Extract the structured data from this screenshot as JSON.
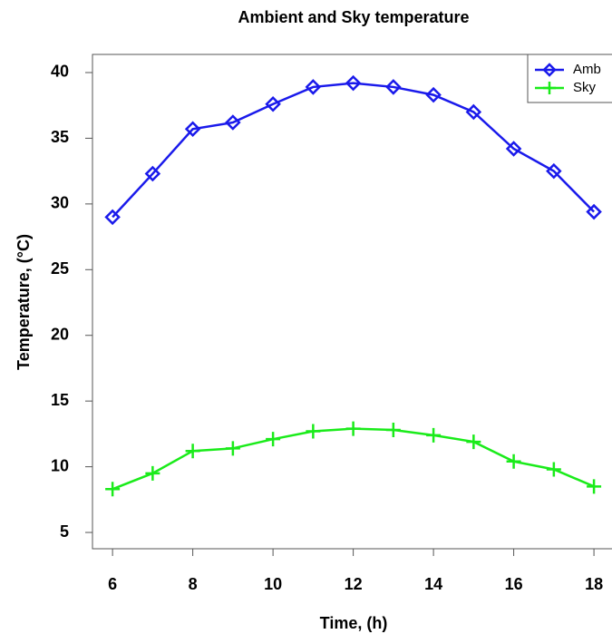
{
  "chart_data": {
    "type": "line",
    "title": "Ambient and Sky temperature",
    "x_label": "Time, (h)",
    "y_label": "Temperature, (°C)",
    "x": [
      6,
      7,
      8,
      9,
      10,
      11,
      12,
      13,
      14,
      15,
      16,
      17,
      18
    ],
    "series": [
      {
        "name": "Amb",
        "color": "#1a1aeb",
        "marker": "diamond",
        "values": [
          29.0,
          32.3,
          35.7,
          36.2,
          37.6,
          38.9,
          39.2,
          38.9,
          38.3,
          37.0,
          34.2,
          32.5,
          29.4
        ]
      },
      {
        "name": "Sky",
        "color": "#1aeb1a",
        "marker": "plus",
        "values": [
          8.3,
          9.5,
          11.2,
          11.4,
          12.1,
          12.7,
          12.9,
          12.8,
          12.4,
          11.9,
          10.4,
          9.8,
          8.5
        ]
      }
    ],
    "xlim": [
      5.5,
      18.45
    ],
    "ylim": [
      3.76,
      41.38
    ],
    "xticks": [
      6,
      8,
      10,
      12,
      14,
      16,
      18
    ],
    "yticks": [
      5,
      10,
      15,
      20,
      25,
      30,
      35,
      40
    ],
    "legend": "topright"
  }
}
